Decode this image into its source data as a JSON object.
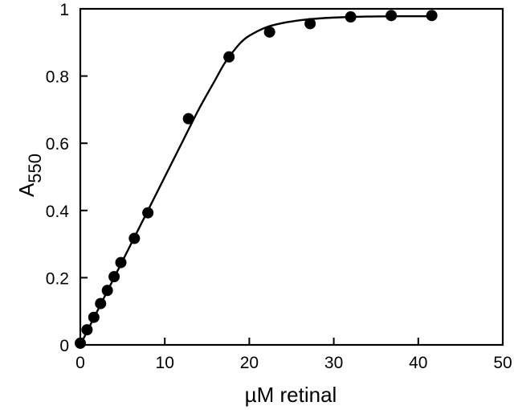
{
  "chart_data": {
    "type": "scatter",
    "title": "",
    "xlabel": "µM retinal",
    "ylabel": {
      "base": "A",
      "subscript": "550"
    },
    "xlim": [
      0,
      50
    ],
    "ylim": [
      0,
      1
    ],
    "x_ticks": [
      0,
      10,
      20,
      30,
      40,
      50
    ],
    "y_ticks": [
      0,
      0.2,
      0.4,
      0.6,
      0.8,
      1
    ],
    "x_tick_labels": [
      "0",
      "10",
      "20",
      "30",
      "40",
      "50"
    ],
    "y_tick_labels": [
      "0",
      "0.2",
      "0.4",
      "0.6",
      "0.8",
      "1"
    ],
    "grid": false,
    "legend": "none",
    "colors": {
      "points": "#000000",
      "line": "#000000",
      "axes": "#000000"
    },
    "series": [
      {
        "kind": "points",
        "x": [
          0,
          0.8,
          1.6,
          2.4,
          3.2,
          4.0,
          4.8,
          6.4,
          8.0,
          12.8,
          17.6,
          22.4,
          27.2,
          32.0,
          36.8,
          41.6
        ],
        "y": [
          0.005,
          0.045,
          0.082,
          0.123,
          0.162,
          0.203,
          0.245,
          0.317,
          0.393,
          0.673,
          0.857,
          0.931,
          0.956,
          0.976,
          0.98,
          0.98
        ]
      },
      {
        "kind": "fit-curve",
        "x": [
          0,
          2,
          4,
          6,
          8,
          10,
          12,
          14,
          16,
          17,
          18,
          19,
          20,
          22,
          24,
          26,
          28,
          30,
          34,
          38,
          42
        ],
        "y": [
          0,
          0.1,
          0.2,
          0.3,
          0.4,
          0.5,
          0.6,
          0.7,
          0.79,
          0.835,
          0.87,
          0.9,
          0.92,
          0.945,
          0.958,
          0.966,
          0.971,
          0.974,
          0.977,
          0.978,
          0.978
        ]
      }
    ]
  }
}
